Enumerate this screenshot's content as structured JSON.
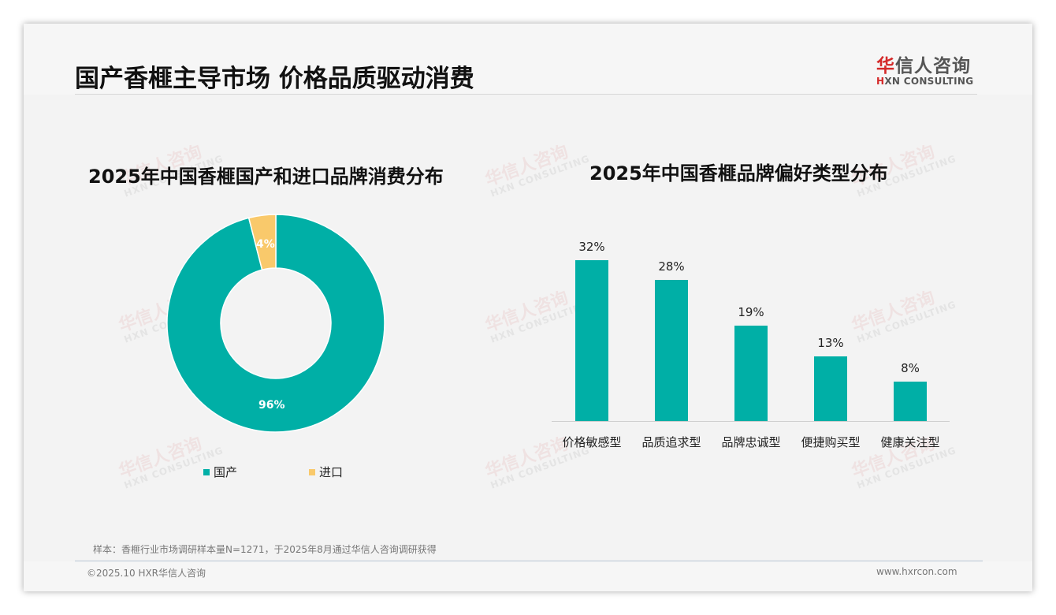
{
  "header": {
    "title": "国产香榧主导市场 价格品质驱动消费",
    "logo": {
      "cn_prefix": "华",
      "cn_rest": "信人咨询",
      "en_prefix": "H",
      "en_rest": "XN CONSULTING"
    }
  },
  "colors": {
    "teal": "#00afa6",
    "yellow": "#f9c96b",
    "logo_red": "#d42a2a"
  },
  "watermark": {
    "cn": "华信人咨询",
    "en": "HXN CONSULTING"
  },
  "chart_data": [
    {
      "type": "pie",
      "variant": "donut",
      "title": "2025年中国香榧国产和进口品牌消费分布",
      "categories": [
        "国产",
        "进口"
      ],
      "values": [
        96,
        4
      ],
      "labels": [
        "96%",
        "4%"
      ],
      "colors": [
        "#00afa6",
        "#f9c96b"
      ],
      "legend_position": "bottom"
    },
    {
      "type": "bar",
      "title": "2025年中国香榧品牌偏好类型分布",
      "categories": [
        "价格敏感型",
        "品质追求型",
        "品牌忠诚型",
        "便捷购买型",
        "健康关注型"
      ],
      "values": [
        32,
        28,
        19,
        13,
        8
      ],
      "labels": [
        "32%",
        "28%",
        "19%",
        "13%",
        "8%"
      ],
      "color": "#00afa6",
      "xlabel": "",
      "ylabel": "",
      "grid": false,
      "ylim": [
        0,
        35
      ]
    }
  ],
  "footer": {
    "note": "样本：香榧行业市场调研样本量N=1271，于2025年8月通过华信人咨询调研获得",
    "copyright": "©2025.10 HXR华信人咨询",
    "website": "www.hxrcon.com"
  }
}
